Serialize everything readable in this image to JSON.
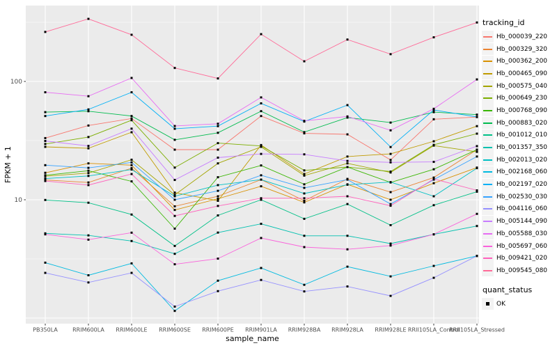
{
  "chart_data": {
    "type": "line",
    "title": "",
    "xlabel": "sample_name",
    "ylabel": "FPKM + 1",
    "y_scale": "log10",
    "y_ticks": [
      10,
      100
    ],
    "y_minor_ticks": [
      3.162,
      31.62,
      316.2
    ],
    "ylim": [
      0.9,
      440
    ],
    "grid": true,
    "panel_bg": "#EBEBEB",
    "grid_color": "#FFFFFF",
    "tick_label_color": "#4D4D4D",
    "point_shape": "filled-square",
    "point_color": "#000000",
    "legend_title": "tracking_id",
    "legend_position": "right",
    "shape_legend": {
      "title": "quant_status",
      "items": [
        {
          "label": "OK",
          "shape": "filled-square",
          "color": "#000000"
        }
      ]
    },
    "categories": [
      "PB350LA",
      "RRIM600LA",
      "RRIM600LE",
      "RRIM600SE",
      "RRIM600PE",
      "RRIM901LA",
      "RRIM928BA",
      "RRIM928LA",
      "RRIM928LE",
      "RRII105LA_Control",
      "RRII105LA_Stressed"
    ],
    "series": [
      {
        "name": "Hb_000039_220",
        "color": "#F8766D",
        "values": [
          33.2,
          42.4,
          48.6,
          26.5,
          26.5,
          51.0,
          36.4,
          35.7,
          21.7,
          47.9,
          50.0
        ]
      },
      {
        "name": "Hb_000329_320",
        "color": "#EA8331",
        "values": [
          14.7,
          14.0,
          18.5,
          8.8,
          10.7,
          14.8,
          9.8,
          15.0,
          11.6,
          15.4,
          26.5
        ]
      },
      {
        "name": "Hb_000362_200",
        "color": "#D89000",
        "values": [
          16.9,
          20.3,
          19.6,
          8.2,
          10.2,
          13.0,
          9.5,
          13.5,
          10.0,
          13.8,
          18.7
        ]
      },
      {
        "name": "Hb_000465_090",
        "color": "#C09B00",
        "values": [
          28.0,
          27.2,
          37.2,
          11.5,
          9.8,
          29.0,
          16.5,
          23.2,
          24.4,
          31.2,
          41.9
        ]
      },
      {
        "name": "Hb_000575_040",
        "color": "#A3A500",
        "values": [
          15.8,
          16.8,
          21.8,
          11.0,
          20.3,
          28.0,
          16.0,
          20.3,
          17.0,
          28.7,
          25.4
        ]
      },
      {
        "name": "Hb_000649_230",
        "color": "#7CAE00",
        "values": [
          29.6,
          33.9,
          47.0,
          18.7,
          30.1,
          28.5,
          17.7,
          18.9,
          17.3,
          29.1,
          36.2
        ]
      },
      {
        "name": "Hb_000768_090",
        "color": "#39B600",
        "values": [
          16.1,
          17.6,
          14.3,
          5.7,
          15.5,
          19.5,
          13.5,
          18.9,
          14.0,
          18.1,
          26.5
        ]
      },
      {
        "name": "Hb_000883_020",
        "color": "#00BB4E",
        "values": [
          55.0,
          56.0,
          51.0,
          32.1,
          36.8,
          56.1,
          37.3,
          49.5,
          44.9,
          55.0,
          52.4
        ]
      },
      {
        "name": "Hb_001012_010",
        "color": "#00C087",
        "values": [
          9.96,
          9.44,
          7.5,
          4.07,
          7.37,
          10.0,
          6.9,
          9.2,
          6.1,
          9.0,
          11.7
        ]
      },
      {
        "name": "Hb_001357_350",
        "color": "#00C0AF",
        "values": [
          5.2,
          5.0,
          4.48,
          3.49,
          5.28,
          6.26,
          4.96,
          4.96,
          4.26,
          5.1,
          6.0
        ]
      },
      {
        "name": "Hb_002013_020",
        "color": "#00BFC4",
        "values": [
          15.1,
          15.9,
          18.0,
          10.7,
          13.3,
          14.8,
          11.3,
          13.4,
          14.1,
          10.7,
          18.5
        ]
      },
      {
        "name": "Hb_002168_060",
        "color": "#00BAE0",
        "values": [
          2.94,
          2.3,
          2.9,
          1.15,
          2.07,
          2.65,
          1.91,
          2.72,
          2.25,
          2.76,
          3.35
        ]
      },
      {
        "name": "Hb_002197_020",
        "color": "#00B0F6",
        "values": [
          51.0,
          58.0,
          81.0,
          39.8,
          41.9,
          65.3,
          45.8,
          63.1,
          27.9,
          57.4,
          50.1
        ]
      },
      {
        "name": "Hb_002530_030",
        "color": "#35A2FF",
        "values": [
          19.6,
          18.6,
          20.7,
          10.0,
          11.9,
          16.1,
          12.6,
          14.8,
          9.2,
          14.8,
          23.2
        ]
      },
      {
        "name": "Hb_004116_060",
        "color": "#9590FF",
        "values": [
          2.41,
          2.0,
          2.41,
          1.25,
          1.69,
          2.1,
          1.68,
          1.85,
          1.54,
          2.19,
          3.35
        ]
      },
      {
        "name": "Hb_005144_090",
        "color": "#C77CFF",
        "values": [
          31.4,
          28.5,
          39.9,
          14.7,
          22.7,
          24.4,
          24.2,
          21.3,
          20.7,
          20.9,
          28.4
        ]
      },
      {
        "name": "Hb_005588_030",
        "color": "#E76BF3",
        "values": [
          81.0,
          75.0,
          107.0,
          42.0,
          43.9,
          73.3,
          46.4,
          50.6,
          38.6,
          58.7,
          104.0
        ]
      },
      {
        "name": "Hb_005697_060",
        "color": "#FA62DB",
        "values": [
          5.1,
          4.6,
          5.27,
          2.85,
          3.18,
          4.75,
          3.98,
          3.81,
          4.1,
          5.1,
          7.6
        ]
      },
      {
        "name": "Hb_009421_020",
        "color": "#FF62BC",
        "values": [
          14.4,
          13.3,
          16.5,
          7.3,
          8.87,
          10.3,
          10.3,
          10.7,
          8.9,
          15.0,
          12.0
        ]
      },
      {
        "name": "Hb_009545_080",
        "color": "#FF6A98",
        "values": [
          262,
          338,
          248,
          130,
          106,
          251,
          148,
          226,
          170,
          236,
          315
        ]
      }
    ]
  }
}
